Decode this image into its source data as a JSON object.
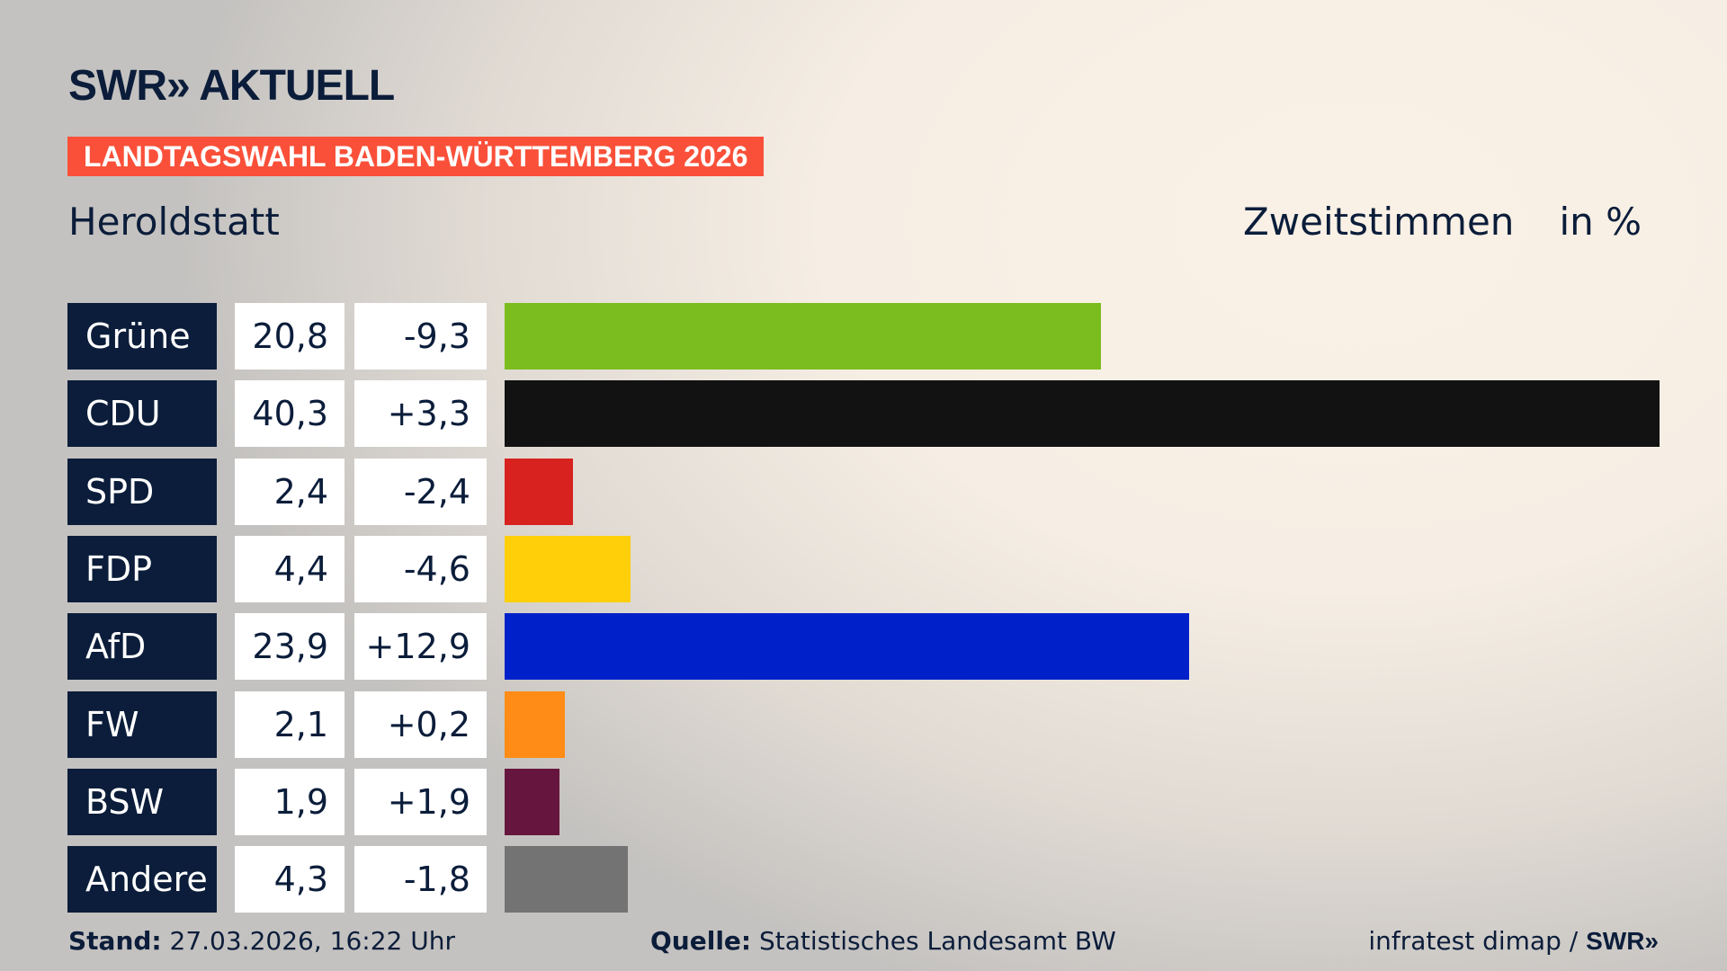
{
  "header": {
    "logo": "SWR» AKTUELL",
    "banner": "LANDTAGSWAHL BADEN-WÜRTTEMBERG 2026",
    "place": "Heroldstatt",
    "metric": "Zweitstimmen",
    "unit": "in %"
  },
  "chart_data": {
    "type": "bar",
    "orientation": "horizontal",
    "xlim": [
      0,
      40.3
    ],
    "categories": [
      "Grüne",
      "CDU",
      "SPD",
      "FDP",
      "AfD",
      "FW",
      "BSW",
      "Andere"
    ],
    "values": [
      20.8,
      40.3,
      2.4,
      4.4,
      23.9,
      2.1,
      1.9,
      4.3
    ],
    "values_label": [
      "20,8",
      "40,3",
      "2,4",
      "4,4",
      "23,9",
      "2,1",
      "1,9",
      "4,3"
    ],
    "changes_label": [
      "-9,3",
      "+3,3",
      "-2,4",
      "-4,6",
      "+12,9",
      "+0,2",
      "+1,9",
      "-1,8"
    ],
    "colors": [
      "#7bbd1e",
      "#121212",
      "#d7221f",
      "#ffcf0a",
      "#0021c9",
      "#ff8c16",
      "#66163e",
      "#737373"
    ]
  },
  "footer": {
    "stand_label": "Stand:",
    "stand": " 27.03.2026, 16:22 Uhr",
    "source_label": "Quelle:",
    "source": " Statistisches Landesamt BW",
    "credit": "infratest dimap / ",
    "credit_logo": "SWR»"
  }
}
